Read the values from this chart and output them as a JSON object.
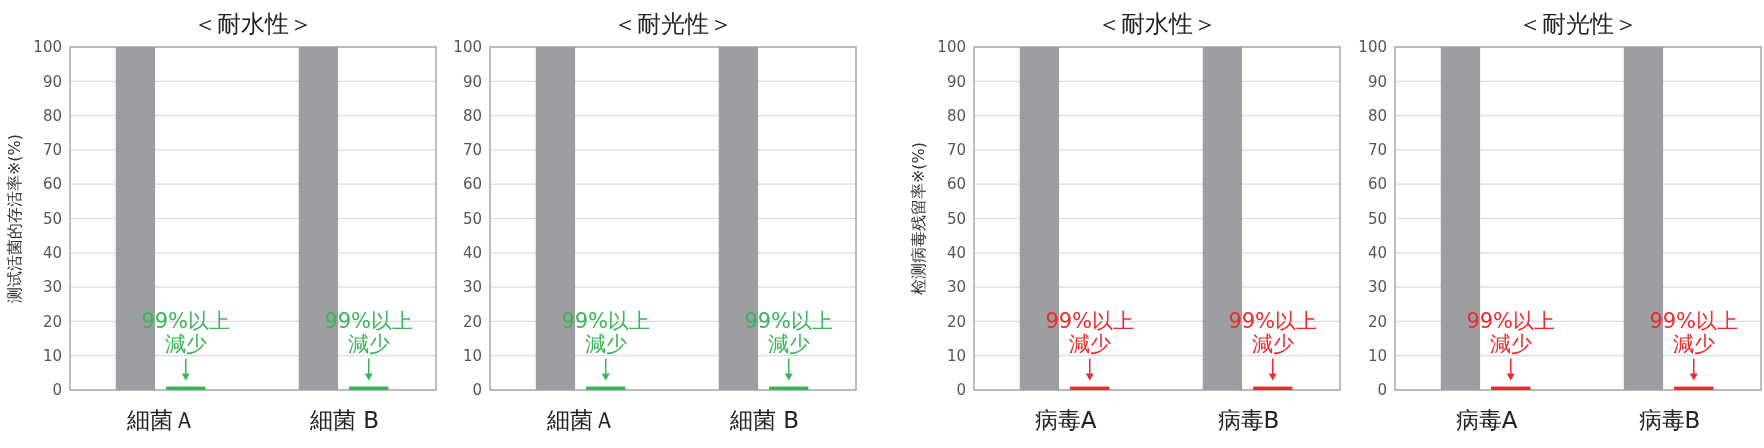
{
  "chart_data": [
    {
      "type": "bar",
      "title": "＜耐水性＞",
      "ylabel": "测试活菌的存活率※(%)",
      "categories": [
        "細菌Ａ",
        "細菌 B"
      ],
      "ylim": [
        0,
        100
      ],
      "yticks": [
        0,
        10,
        20,
        30,
        40,
        50,
        60,
        70,
        80,
        90,
        100
      ],
      "grid": "y",
      "series": [
        {
          "color": "#9d9ea2",
          "values": [
            100,
            100
          ]
        },
        {
          "color": "#3cb55a",
          "values": [
            1,
            1
          ]
        }
      ],
      "annotations": [
        {
          "text": "99%以上減少",
          "x": "細菌Ａ",
          "y": 1
        },
        {
          "text": "99%以上減少",
          "x": "細菌 B",
          "y": 1
        }
      ]
    },
    {
      "type": "bar",
      "title": "＜耐光性＞",
      "categories": [
        "細菌Ａ",
        "細菌 B"
      ],
      "ylim": [
        0,
        100
      ],
      "yticks": [
        0,
        10,
        20,
        30,
        40,
        50,
        60,
        70,
        80,
        90,
        100
      ],
      "grid": "y",
      "series": [
        {
          "color": "#9d9ea2",
          "values": [
            100,
            100
          ]
        },
        {
          "color": "#3cb55a",
          "values": [
            1,
            1
          ]
        }
      ],
      "annotations": [
        {
          "text": "99%以上減少",
          "x": "細菌Ａ",
          "y": 1
        },
        {
          "text": "99%以上減少",
          "x": "細菌 B",
          "y": 1
        }
      ]
    },
    {
      "type": "bar",
      "title": "＜耐水性＞",
      "ylabel": "检测病毒残留率※(%)",
      "categories": [
        "病毒A",
        "病毒B"
      ],
      "ylim": [
        0,
        100
      ],
      "yticks": [
        0,
        10,
        20,
        30,
        40,
        50,
        60,
        70,
        80,
        90,
        100
      ],
      "grid": "y",
      "series": [
        {
          "color": "#9d9ea2",
          "values": [
            100,
            100
          ]
        },
        {
          "color": "#ee2a2e",
          "values": [
            1,
            1
          ]
        }
      ],
      "annotations": [
        {
          "text": "99%以上減少",
          "x": "病毒A",
          "y": 1
        },
        {
          "text": "99%以上減少",
          "x": "病毒B",
          "y": 1
        }
      ]
    },
    {
      "type": "bar",
      "title": "＜耐光性＞",
      "categories": [
        "病毒A",
        "病毒B"
      ],
      "ylim": [
        0,
        100
      ],
      "yticks": [
        0,
        10,
        20,
        30,
        40,
        50,
        60,
        70,
        80,
        90,
        100
      ],
      "grid": "y",
      "series": [
        {
          "color": "#9d9ea2",
          "values": [
            100,
            100
          ]
        },
        {
          "color": "#ee2a2e",
          "values": [
            1,
            1
          ]
        }
      ],
      "annotations": [
        {
          "text": "99%以上減少",
          "x": "病毒A",
          "y": 1
        },
        {
          "text": "99%以上減少",
          "x": "病毒B",
          "y": 1
        }
      ]
    }
  ]
}
